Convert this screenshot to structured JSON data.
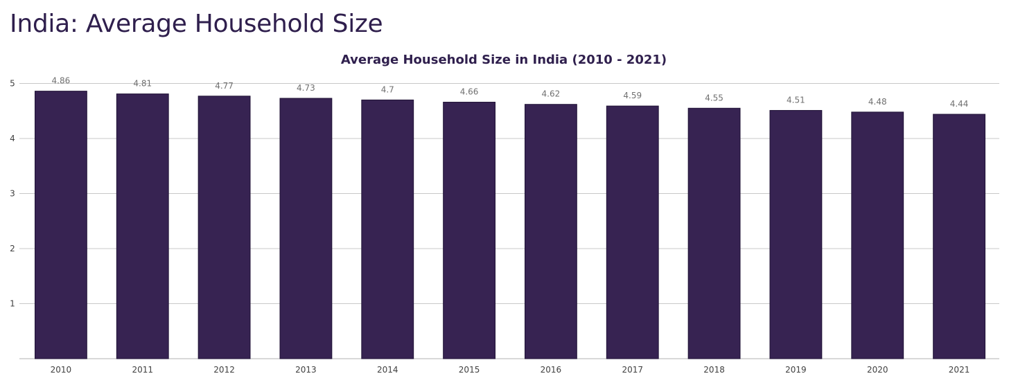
{
  "page": {
    "title": "India: Average Household Size"
  },
  "colors": {
    "bar": "#372352",
    "bar_outline": "#1f1235",
    "title": "#2f1f4d"
  },
  "chart_data": {
    "type": "bar",
    "title": "Average Household Size in India (2010 - 2021)",
    "xlabel": "",
    "ylabel": "",
    "categories": [
      "2010",
      "2011",
      "2012",
      "2013",
      "2014",
      "2015",
      "2016",
      "2017",
      "2018",
      "2019",
      "2020",
      "2021"
    ],
    "values": [
      4.86,
      4.81,
      4.77,
      4.73,
      4.7,
      4.66,
      4.62,
      4.59,
      4.55,
      4.51,
      4.48,
      4.44
    ],
    "data_labels": [
      "4.86",
      "4.81",
      "4.77",
      "4.73",
      "4.7",
      "4.66",
      "4.62",
      "4.59",
      "4.55",
      "4.51",
      "4.48",
      "4.44"
    ],
    "ylim": [
      0,
      5
    ],
    "yticks": [
      1,
      2,
      3,
      4,
      5
    ],
    "ytick_labels": [
      "1",
      "2",
      "3",
      "4",
      "5"
    ],
    "grid": true,
    "legend": "none"
  }
}
